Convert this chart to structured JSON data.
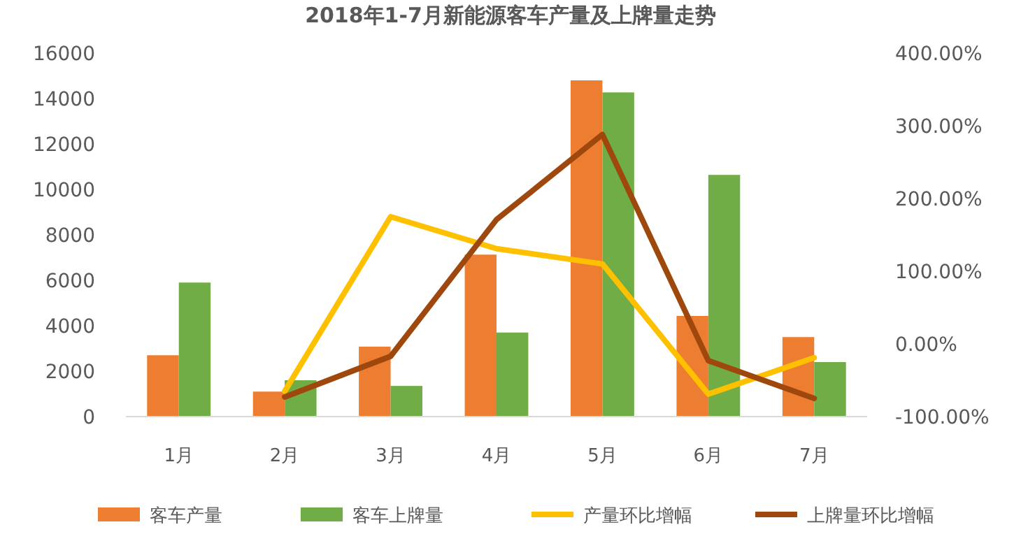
{
  "chart_data": {
    "type": "bar",
    "title": "2018年1-7月新能源客车产量及上牌量走势",
    "categories": [
      "1月",
      "2月",
      "3月",
      "4月",
      "5月",
      "6月",
      "7月"
    ],
    "series": [
      {
        "name": "客车产量",
        "color": "#ed7d31",
        "values": [
          2700,
          1100,
          3080,
          7130,
          14800,
          4430,
          3500
        ]
      },
      {
        "name": "客车上牌量",
        "color": "#70ad47",
        "values": [
          5900,
          1600,
          1350,
          3700,
          14270,
          10640,
          2400
        ]
      },
      {
        "name": "产量环比增幅",
        "type": "line",
        "axis": "y2",
        "color": "#ffc000",
        "values": [
          null,
          -65,
          175,
          131,
          110,
          -69,
          -19
        ]
      },
      {
        "name": "上牌量环比增幅",
        "type": "line",
        "axis": "y2",
        "color": "#9e480e",
        "values": [
          null,
          -73,
          -17,
          171,
          288,
          -23,
          -75
        ]
      }
    ],
    "ylim": [
      0,
      16000
    ],
    "yticks": [
      0,
      2000,
      4000,
      6000,
      8000,
      10000,
      12000,
      14000,
      16000
    ],
    "y2lim": [
      -100,
      400
    ],
    "y2ticks": [
      {
        "value": -100,
        "label": "-100.00%"
      },
      {
        "value": 0,
        "label": "0.00%"
      },
      {
        "value": 100,
        "label": "100.00%"
      },
      {
        "value": 200,
        "label": "200.00%"
      },
      {
        "value": 300,
        "label": "300.00%"
      },
      {
        "value": 400,
        "label": "400.00%"
      }
    ],
    "grid": false,
    "legend": "bottom"
  }
}
